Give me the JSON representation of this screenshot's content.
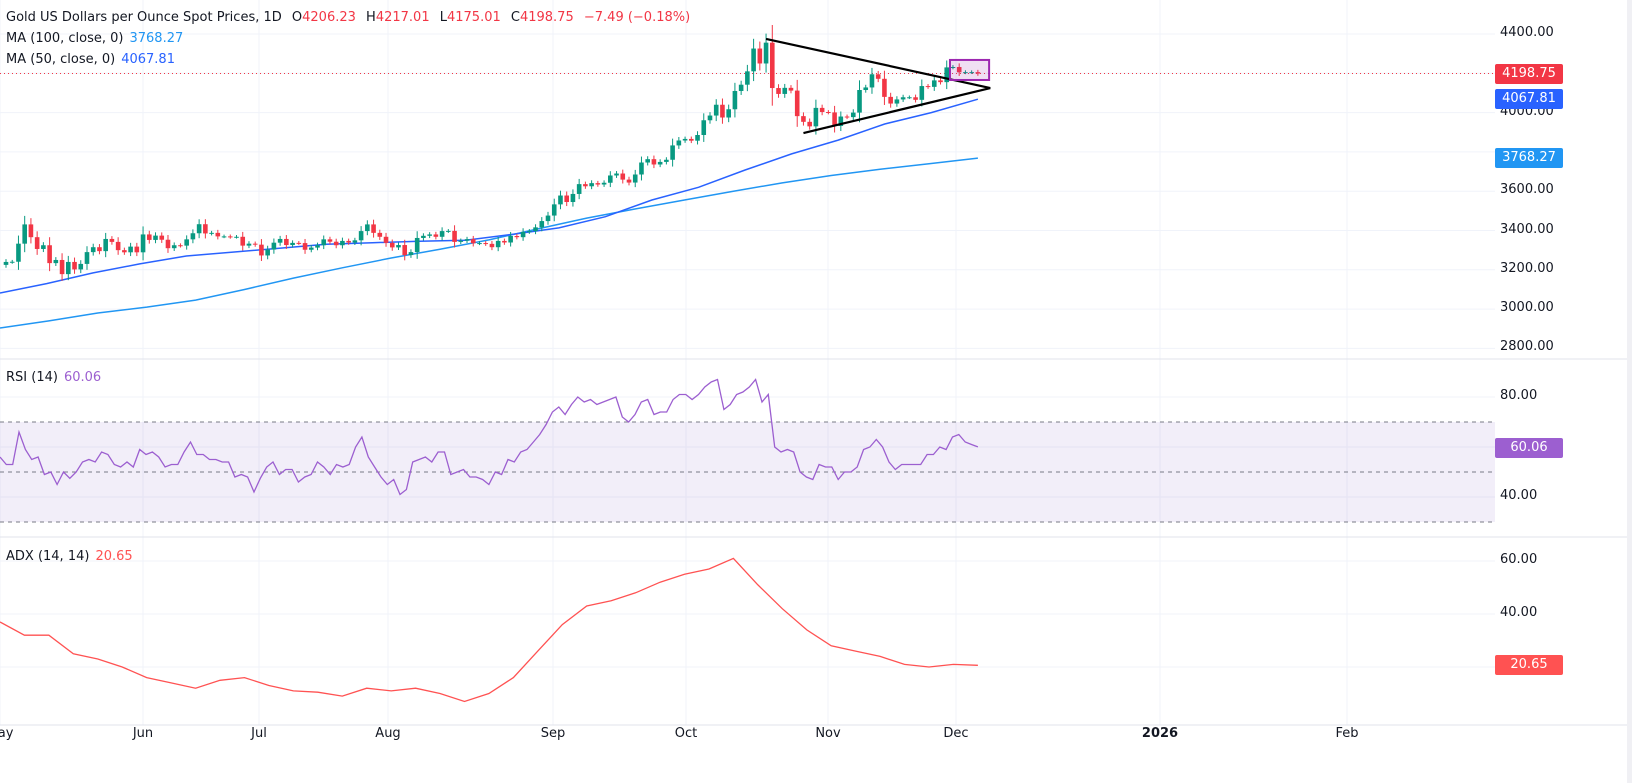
{
  "header": {
    "title": "Gold US Dollars per Ounce Spot Prices, 1D",
    "open_label": "O",
    "open": "4206.23",
    "high_label": "H",
    "high": "4217.01",
    "low_label": "L",
    "low": "4175.01",
    "close_label": "C",
    "close": "4198.75",
    "change": "−7.49 (−0.18%)"
  },
  "indicators": {
    "ma100": {
      "label": "MA (100, close, 0)",
      "value": "3768.27",
      "color": "#2196f3"
    },
    "ma50": {
      "label": "MA (50, close, 0)",
      "value": "4067.81",
      "color": "#2962ff"
    },
    "rsi": {
      "label": "RSI (14)",
      "value": "60.06",
      "color": "#9c5fd0"
    },
    "adx": {
      "label": "ADX (14, 14)",
      "value": "20.65",
      "color": "#ff5252"
    }
  },
  "colors": {
    "up": "#089981",
    "down": "#f23645",
    "last_price": "#f23645",
    "pattern_box": "#9c27b0"
  },
  "chart_data": [
    {
      "type": "candlestick",
      "ylim": [
        2800,
        4450
      ],
      "y_ticks": [
        "4400.00",
        "4000.00",
        "3600.00",
        "3400.00",
        "3200.00",
        "3000.00",
        "2800.00"
      ],
      "x_ticks": [
        "May",
        "Jun",
        "Jul",
        "Aug",
        "Sep",
        "Oct",
        "Nov",
        "Dec",
        "2026",
        "Feb"
      ],
      "grid": true,
      "last_price": "4198.75",
      "closes": [
        3240,
        3241,
        3333,
        3431,
        3366,
        3306,
        3325,
        3234,
        3250,
        3178,
        3240,
        3202,
        3230,
        3290,
        3315,
        3295,
        3357,
        3342,
        3300,
        3289,
        3318,
        3289,
        3380,
        3352,
        3374,
        3353,
        3310,
        3325,
        3323,
        3355,
        3386,
        3432,
        3385,
        3388,
        3370,
        3370,
        3368,
        3368,
        3323,
        3333,
        3328,
        3273,
        3303,
        3338,
        3357,
        3326,
        3337,
        3336,
        3302,
        3313,
        3325,
        3355,
        3343,
        3325,
        3347,
        3339,
        3350,
        3397,
        3431,
        3388,
        3368,
        3337,
        3314,
        3326,
        3275,
        3290,
        3362,
        3373,
        3380,
        3368,
        3397,
        3398,
        3342,
        3348,
        3356,
        3335,
        3336,
        3332,
        3315,
        3347,
        3339,
        3372,
        3366,
        3393,
        3397,
        3416,
        3448,
        3476,
        3533,
        3578,
        3545,
        3586,
        3636,
        3625,
        3641,
        3634,
        3643,
        3680,
        3690,
        3659,
        3644,
        3685,
        3746,
        3763,
        3736,
        3749,
        3760,
        3833,
        3858,
        3866,
        3857,
        3886,
        3961,
        3985,
        4040,
        3975,
        4017,
        4110,
        4142,
        4210,
        4326,
        4250,
        4356,
        4125,
        4095,
        4126,
        4112,
        3982,
        3953,
        3930,
        4024,
        4003,
        4001,
        3932,
        3980,
        3977,
        4000,
        4115,
        4128,
        4195,
        4172,
        4080,
        4046,
        4067,
        4078,
        4078,
        4065,
        4135,
        4131,
        4164,
        4155,
        4230,
        4232,
        4205,
        4206,
        4206,
        4198.75
      ],
      "ma50": [
        3082,
        3130,
        3184,
        3230,
        3270,
        3290,
        3310,
        3330,
        3338,
        3345,
        3350,
        3380,
        3413,
        3470,
        3555,
        3620,
        3708,
        3790,
        3860,
        3942,
        4000,
        4068
      ],
      "ma100": [
        2904,
        2940,
        2980,
        3010,
        3046,
        3100,
        3158,
        3210,
        3260,
        3305,
        3352,
        3408,
        3463,
        3510,
        3555,
        3600,
        3642,
        3680,
        3712,
        3740,
        3768.27
      ],
      "trendlines": [
        {
          "from": [
            "2025-10-20",
            4375
          ],
          "to": [
            "2025-12-09",
            4125
          ]
        },
        {
          "from": [
            "2025-10-28",
            3896
          ],
          "to": [
            "2025-12-09",
            4125
          ]
        }
      ],
      "highlight_box": {
        "from": [
          "2025-12-01",
          4268
        ],
        "to": [
          "2025-12-08",
          4166
        ]
      }
    },
    {
      "type": "line",
      "name": "RSI (14)",
      "ylim": [
        25,
        95
      ],
      "y_ticks": [
        "80.00",
        "40.00"
      ],
      "bands": [
        30,
        50,
        70
      ],
      "values": [
        56,
        53,
        53,
        66,
        59,
        55,
        56,
        49,
        50,
        45,
        50,
        47.5,
        50,
        54,
        55,
        54,
        58,
        57,
        53,
        52,
        54,
        52,
        59,
        57,
        58,
        56,
        52,
        53,
        53,
        58,
        62,
        57,
        57,
        55,
        55,
        54,
        54,
        48,
        49,
        48,
        42,
        47.5,
        52,
        54,
        49,
        51,
        51,
        46,
        48,
        49,
        54,
        52,
        49,
        53,
        52,
        53,
        60,
        64,
        56,
        52,
        48,
        45,
        47,
        41,
        43,
        54,
        55,
        56,
        54,
        58,
        58,
        49,
        50,
        51,
        48,
        48,
        47,
        45,
        50,
        49,
        55,
        54,
        58,
        59,
        62,
        65,
        69,
        74,
        76,
        73,
        77,
        80,
        78,
        79,
        77,
        78,
        79,
        80,
        72,
        70,
        73,
        78,
        79,
        73,
        74,
        74,
        79,
        81,
        81,
        79,
        81,
        84,
        86,
        87,
        75,
        77,
        81,
        82,
        84,
        87,
        78,
        81,
        60,
        58,
        59,
        58,
        50,
        48,
        47,
        53,
        52,
        52,
        47,
        50,
        50,
        52,
        59,
        60,
        63,
        60,
        54,
        51,
        53,
        53,
        53,
        53,
        57,
        57,
        60,
        59,
        64,
        65,
        62,
        61,
        60.06
      ]
    },
    {
      "type": "line",
      "name": "ADX (14, 14)",
      "ylim": [
        0,
        70
      ],
      "y_ticks": [
        "60.00",
        "40.00"
      ],
      "values": [
        37,
        32,
        32,
        25,
        23,
        20,
        16,
        14,
        12,
        15,
        16,
        13,
        11,
        10.5,
        9,
        12,
        11,
        12,
        10,
        7,
        10,
        16,
        26,
        36,
        43,
        45,
        48,
        52,
        55,
        57,
        61,
        51,
        42,
        34,
        28,
        26,
        24,
        21,
        20,
        21,
        20.65
      ]
    }
  ]
}
